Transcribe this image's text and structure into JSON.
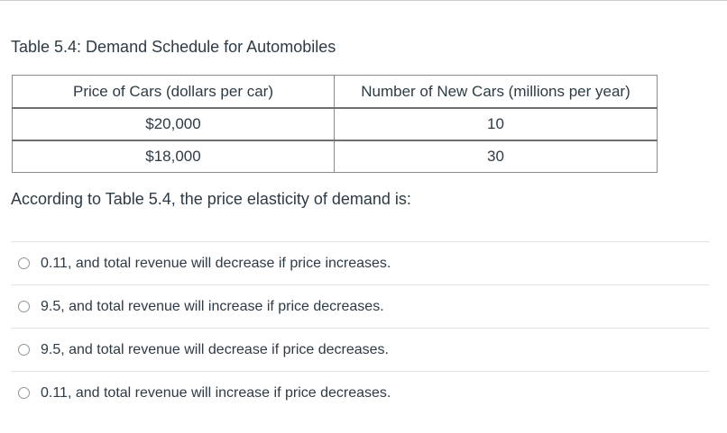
{
  "table": {
    "title": "Table 5.4:  Demand Schedule for Automobiles",
    "headers": [
      "Price of Cars (dollars per car)",
      "Number of New Cars (millions per year)"
    ],
    "rows": [
      [
        "$20,000",
        "10"
      ],
      [
        "$18,000",
        "30"
      ]
    ]
  },
  "question": {
    "text": "According to Table 5.4, the price elasticity of demand is:"
  },
  "answers": [
    {
      "label": "0.11, and total revenue will decrease if price increases."
    },
    {
      "label": "9.5, and total revenue will increase if price decreases."
    },
    {
      "label": "9.5, and total revenue will decrease if price decreases."
    },
    {
      "label": "0.11, and total revenue will increase if price decreases."
    }
  ],
  "colors": {
    "text": "#2d3b45",
    "table_border": "#8a8a8a",
    "divider": "#dfe3e6"
  }
}
